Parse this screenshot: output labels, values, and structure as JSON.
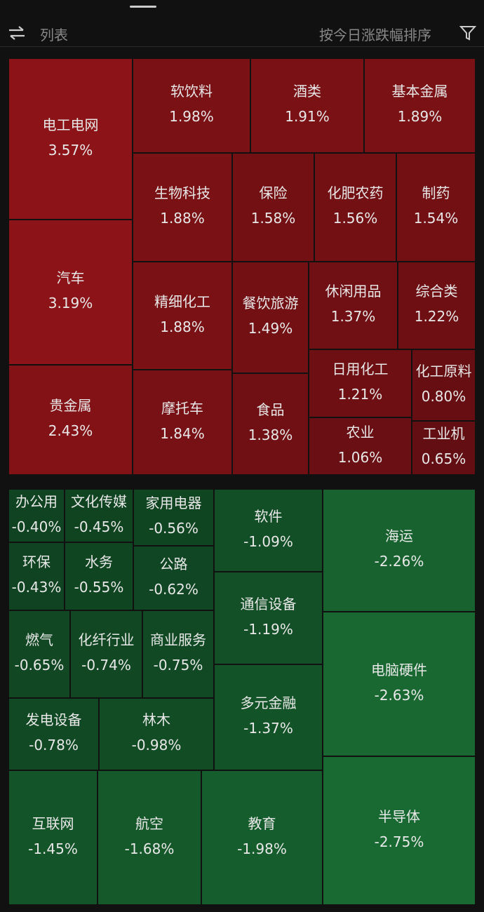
{
  "header": {
    "view": "列表",
    "sort": "按今日涨跌幅排序"
  },
  "gainers": [
    {
      "name": "电工电网",
      "change": "3.57%"
    },
    {
      "name": "汽车",
      "change": "3.19%"
    },
    {
      "name": "贵金属",
      "change": "2.43%"
    },
    {
      "name": "软饮料",
      "change": "1.98%"
    },
    {
      "name": "酒类",
      "change": "1.91%"
    },
    {
      "name": "基本金属",
      "change": "1.89%"
    },
    {
      "name": "生物科技",
      "change": "1.88%"
    },
    {
      "name": "保险",
      "change": "1.58%"
    },
    {
      "name": "化肥农药",
      "change": "1.56%"
    },
    {
      "name": "制药",
      "change": "1.54%"
    },
    {
      "name": "精细化工",
      "change": "1.88%"
    },
    {
      "name": "摩托车",
      "change": "1.84%"
    },
    {
      "name": "餐饮旅游",
      "change": "1.49%"
    },
    {
      "name": "食品",
      "change": "1.38%"
    },
    {
      "name": "休闲用品",
      "change": "1.37%"
    },
    {
      "name": "综合类",
      "change": "1.22%"
    },
    {
      "name": "日用化工",
      "change": "1.21%"
    },
    {
      "name": "化工原料",
      "change": "0.80%"
    },
    {
      "name": "农业",
      "change": "1.06%"
    },
    {
      "name": "工业机",
      "change": "0.65%"
    }
  ],
  "losers": [
    {
      "name": "办公用",
      "change": "-0.40%"
    },
    {
      "name": "文化传媒",
      "change": "-0.45%"
    },
    {
      "name": "家用电器",
      "change": "-0.56%"
    },
    {
      "name": "环保",
      "change": "-0.43%"
    },
    {
      "name": "水务",
      "change": "-0.55%"
    },
    {
      "name": "公路",
      "change": "-0.62%"
    },
    {
      "name": "燃气",
      "change": "-0.65%"
    },
    {
      "name": "化纤行业",
      "change": "-0.74%"
    },
    {
      "name": "商业服务",
      "change": "-0.75%"
    },
    {
      "name": "发电设备",
      "change": "-0.78%"
    },
    {
      "name": "林木",
      "change": "-0.98%"
    },
    {
      "name": "互联网",
      "change": "-1.45%"
    },
    {
      "name": "航空",
      "change": "-1.68%"
    },
    {
      "name": "教育",
      "change": "-1.98%"
    },
    {
      "name": "软件",
      "change": "-1.09%"
    },
    {
      "name": "通信设备",
      "change": "-1.19%"
    },
    {
      "name": "多元金融",
      "change": "-1.37%"
    },
    {
      "name": "海运",
      "change": "-2.26%"
    },
    {
      "name": "电脑硬件",
      "change": "-2.63%"
    },
    {
      "name": "半导体",
      "change": "-2.75%"
    }
  ]
}
